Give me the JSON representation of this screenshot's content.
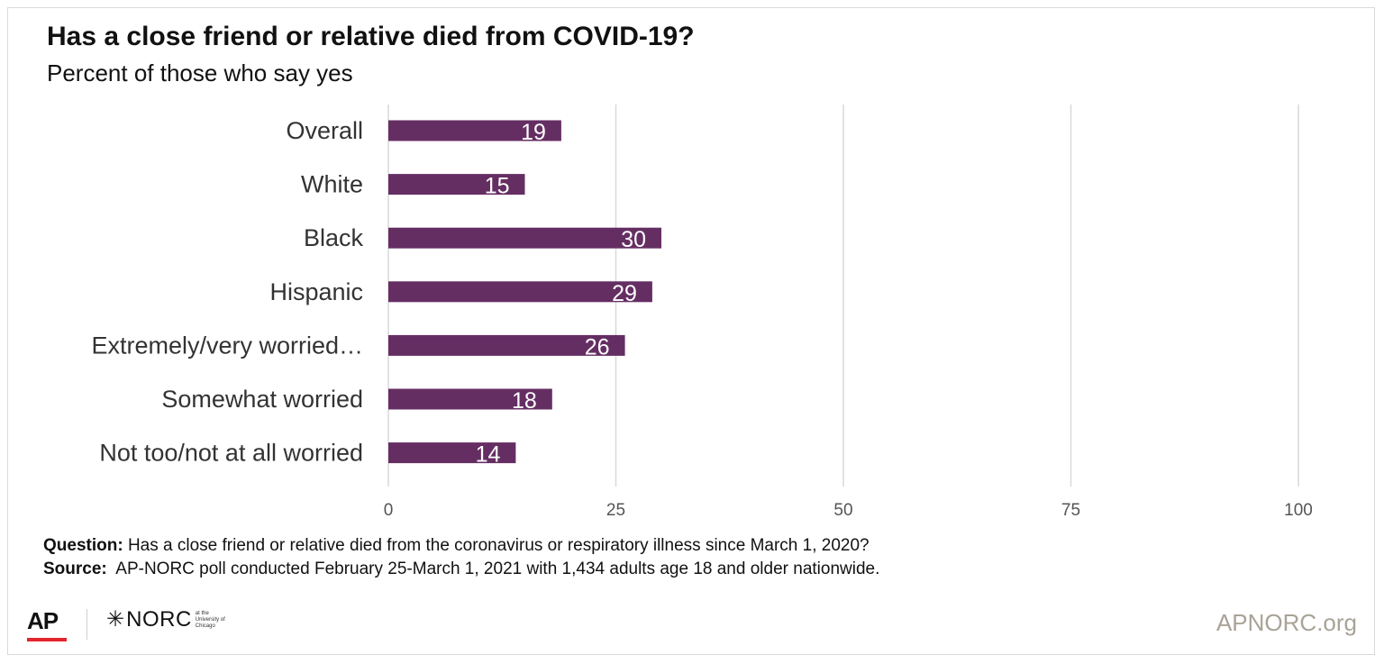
{
  "header": {
    "title": "Has a close friend or relative died from COVID-19?",
    "subtitle": "Percent of those who say yes"
  },
  "notes": {
    "question_label": "Question:",
    "question_text": "Has a close friend or relative died from the coronavirus or respiratory illness since March 1, 2020?",
    "source_label": "Source:",
    "source_text": "AP-NORC poll conducted February 25-March 1, 2021 with 1,434 adults age 18 and older nationwide."
  },
  "footer": {
    "ap_logo": "AP",
    "norc_logo": "NORC",
    "norc_small": "at the University of Chicago",
    "site": "APNORC.org"
  },
  "colors": {
    "bar": "#652e63",
    "grid": "#d9d9d9",
    "label_text": "#333333",
    "value_text": "#ffffff",
    "ap_accent": "#e3262c"
  },
  "chart_data": {
    "type": "bar",
    "orientation": "horizontal",
    "categories": [
      "Overall",
      "White",
      "Black",
      "Hispanic",
      "Extremely/very worried…",
      "Somewhat worried",
      "Not too/not at all worried"
    ],
    "values": [
      19,
      15,
      30,
      29,
      26,
      18,
      14
    ],
    "xlim": [
      0,
      100
    ],
    "xticks": [
      0,
      25,
      50,
      75,
      100
    ],
    "grid": true,
    "legend": "none"
  }
}
